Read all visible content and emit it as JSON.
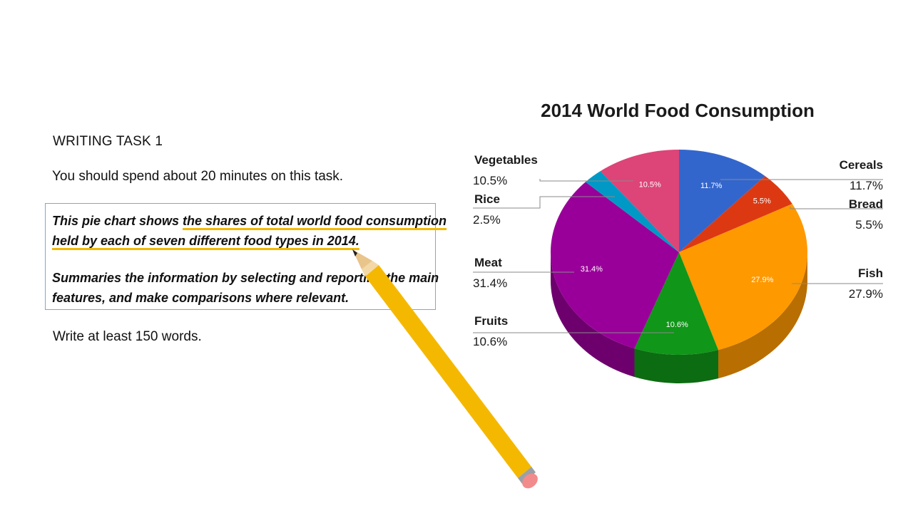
{
  "task": {
    "heading": "WRITING TASK 1",
    "instruction": "You should spend about 20 minutes on this task.",
    "prompt_line1_pre": "This pie chart shows ",
    "prompt_line1_hl": "the shares of total world food consumption",
    "prompt_line2": "held by each of seven different food types in 2014.",
    "prompt_line3": "Summaries the information by selecting and reporting the main",
    "prompt_line4": "features, and make comparisons where relevant.",
    "word_count": "Write at least 150 words."
  },
  "colors": {
    "Cereals": "#3366cc",
    "Bread": "#dc3912",
    "Fish": "#ff9900",
    "Fruits": "#109618",
    "Meat": "#990099",
    "Rice": "#0099c6",
    "Vegetables": "#dd4477",
    "pencil_body": "#f5b800",
    "pencil_eraser": "#f28b8b"
  },
  "chart_data": {
    "type": "pie",
    "title": "2014 World Food Consumption",
    "categories": [
      "Cereals",
      "Bread",
      "Fish",
      "Fruits",
      "Meat",
      "Rice",
      "Vegetables"
    ],
    "values": [
      11.7,
      5.5,
      27.9,
      10.6,
      31.4,
      2.5,
      10.5
    ],
    "value_labels": [
      "11.7%",
      "5.5%",
      "27.9%",
      "10.6%",
      "31.4%",
      "2.5%",
      "10.5%"
    ],
    "legend": "callouts"
  }
}
